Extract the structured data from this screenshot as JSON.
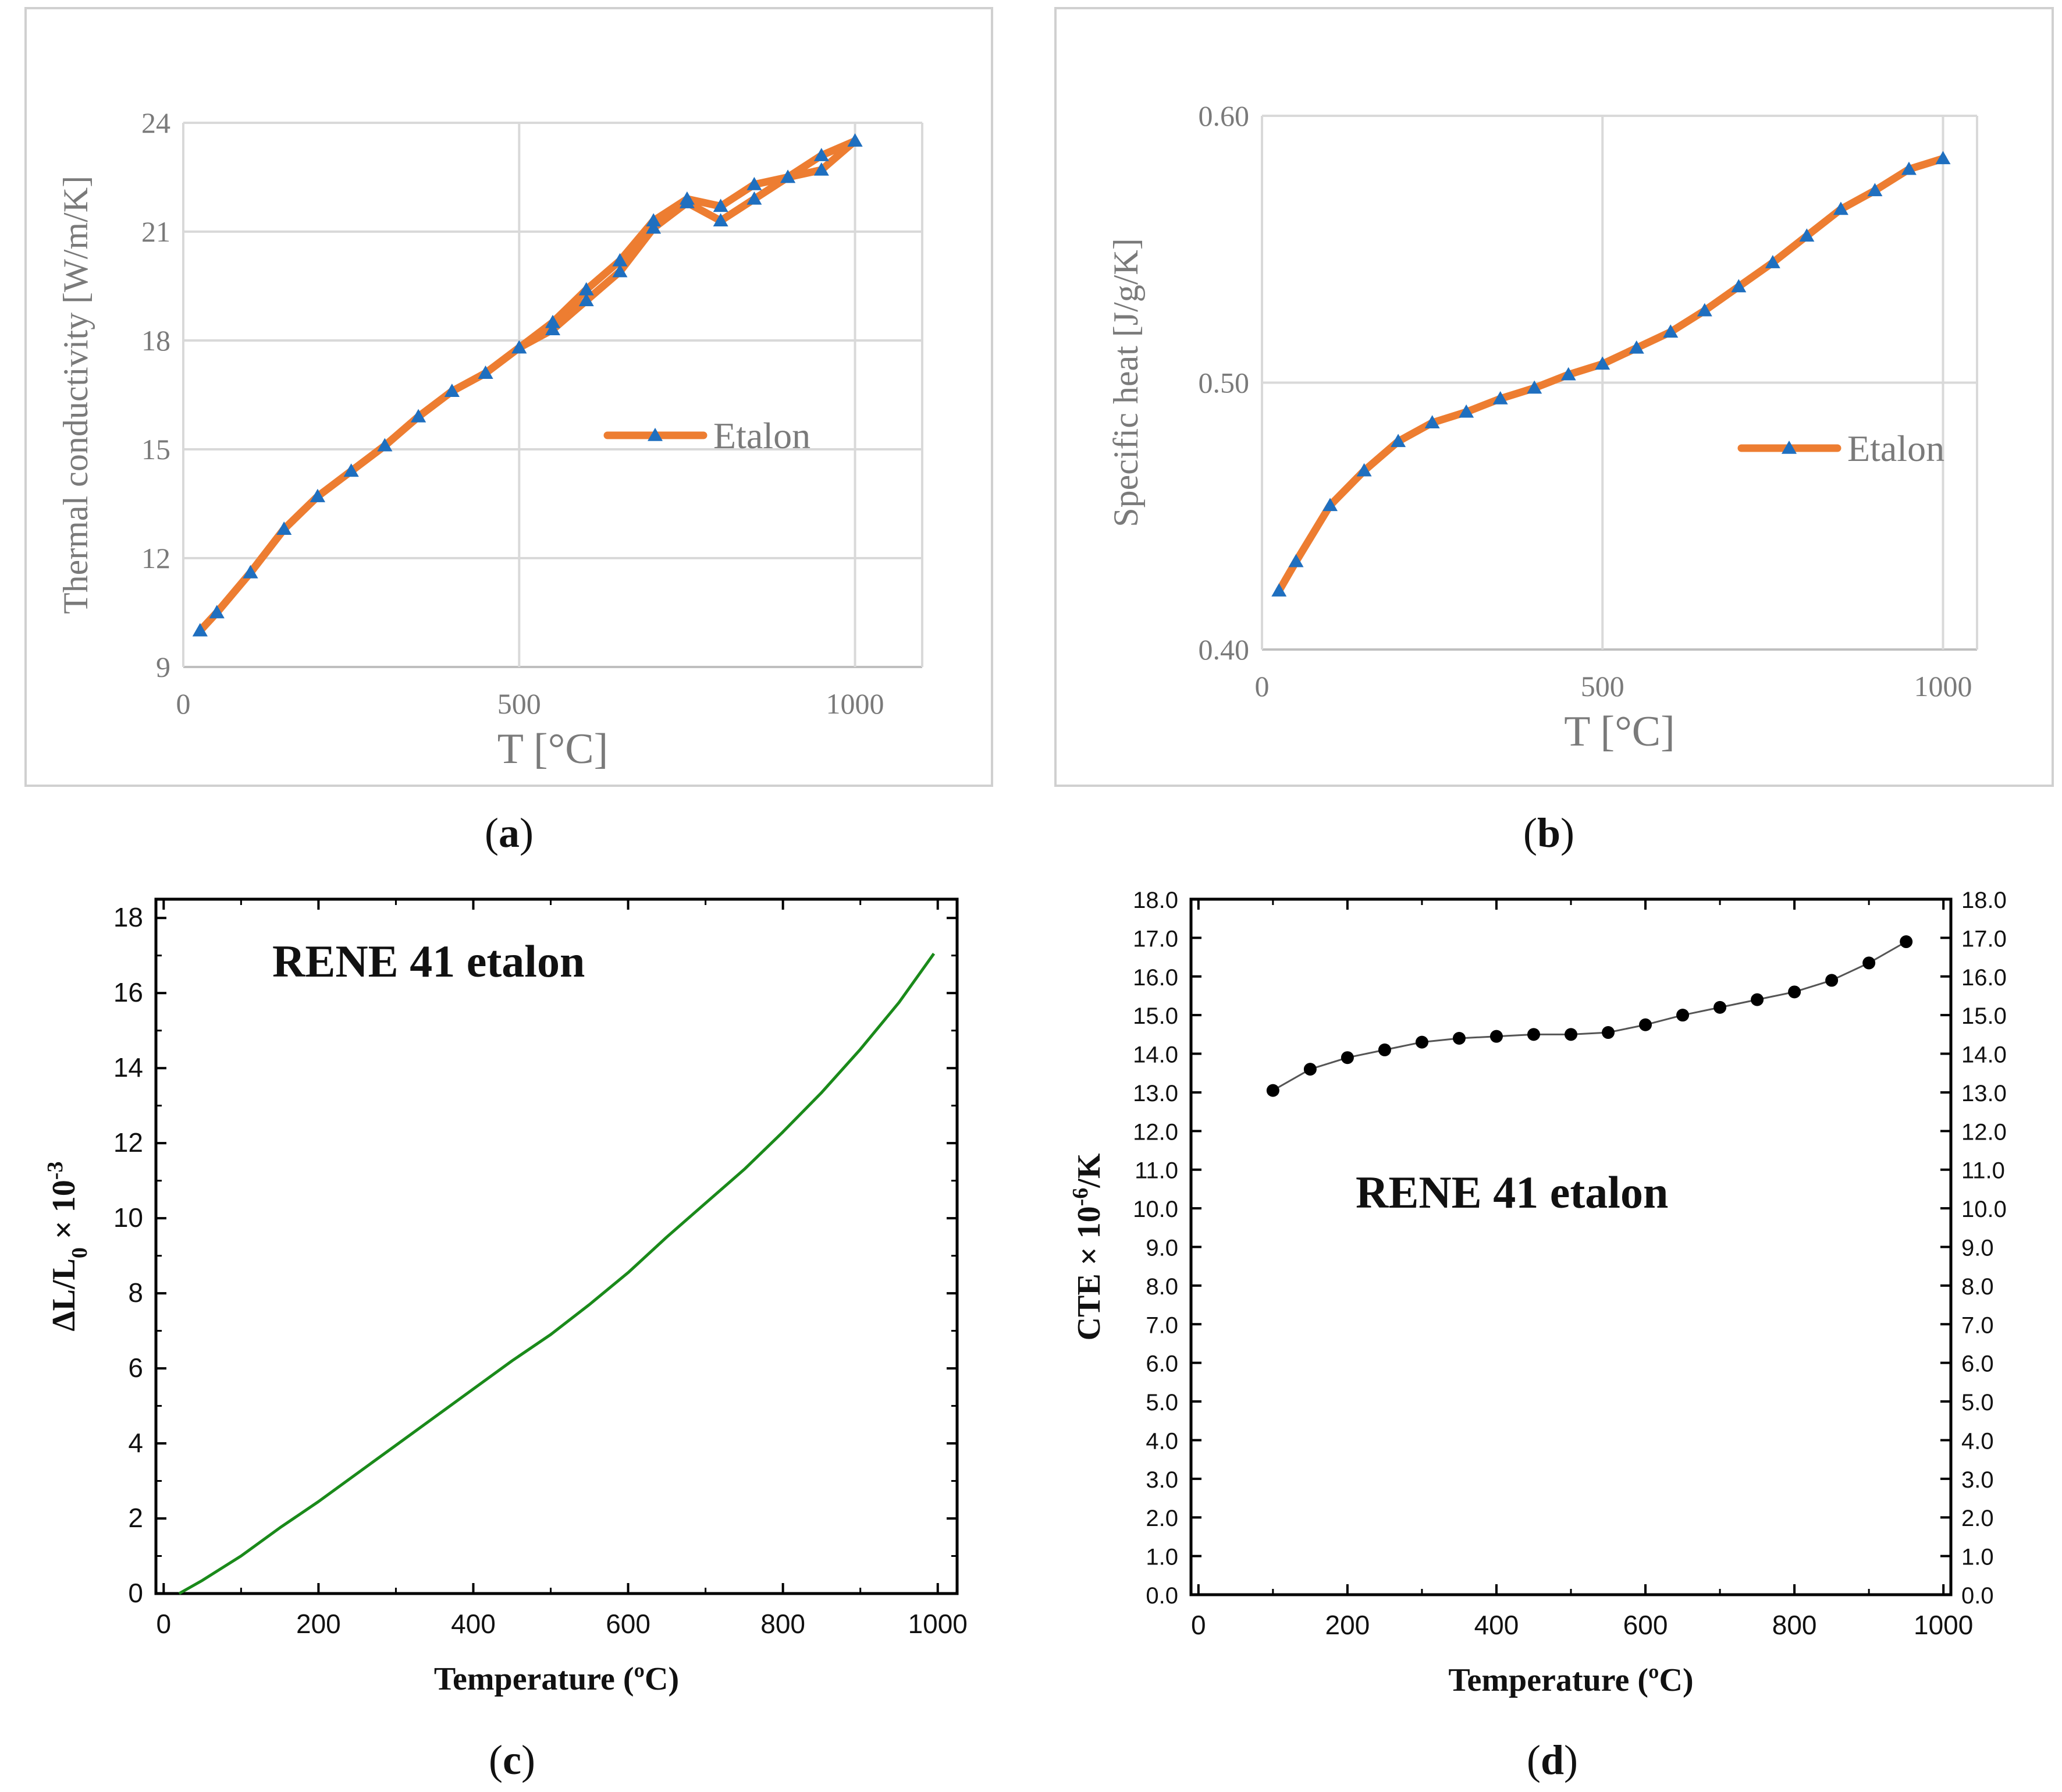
{
  "chart_data": [
    {
      "id": "a",
      "type": "line",
      "caption": [
        "(",
        "a",
        ")"
      ],
      "xlabel": "T [°C]",
      "ylabel": "Thermal conductivity [W/m/K]",
      "xlim": [
        0,
        1100
      ],
      "ylim": [
        9,
        24
      ],
      "xticks": [
        {
          "v": 0,
          "label": "0"
        },
        {
          "v": 500,
          "label": "500"
        },
        {
          "v": 1000,
          "label": "1000"
        }
      ],
      "yticks": [
        {
          "v": 9,
          "label": "9"
        },
        {
          "v": 12,
          "label": "12"
        },
        {
          "v": 15,
          "label": "15"
        },
        {
          "v": 18,
          "label": "18"
        },
        {
          "v": 21,
          "label": "21"
        },
        {
          "v": 24,
          "label": "24"
        }
      ],
      "grid": true,
      "legend": "right-middle",
      "colors": {
        "line": "#ed7d31",
        "marker": "#1f6fbf",
        "grid": "#d9d9d9",
        "axis": "#bfbfbf",
        "frame": "#d0d0d0"
      },
      "series": [
        {
          "name": "Etalon",
          "x": [
            25,
            50,
            100,
            150,
            200,
            250,
            300,
            350,
            400,
            450,
            500,
            550,
            600,
            650,
            700,
            750,
            800,
            850,
            900,
            950,
            1000
          ],
          "y": [
            10.0,
            10.5,
            11.6,
            12.8,
            13.7,
            14.4,
            15.1,
            15.9,
            16.6,
            17.1,
            17.8,
            18.3,
            19.1,
            19.9,
            21.1,
            21.8,
            21.3,
            21.9,
            22.5,
            22.7,
            23.5
          ]
        },
        {
          "name": "Etalon",
          "show_in_legend": false,
          "x": [
            25,
            50,
            100,
            150,
            200,
            250,
            300,
            350,
            400,
            450,
            500,
            550,
            600,
            650,
            700,
            750,
            800,
            850,
            900,
            950,
            1000
          ],
          "y": [
            10.0,
            10.5,
            11.6,
            12.8,
            13.7,
            14.4,
            15.1,
            15.9,
            16.6,
            17.1,
            17.8,
            18.5,
            19.4,
            20.2,
            21.3,
            21.9,
            21.7,
            22.3,
            22.5,
            23.1,
            23.5
          ]
        }
      ],
      "legend_entries": [
        "Etalon"
      ]
    },
    {
      "id": "b",
      "type": "line",
      "caption": [
        "(",
        "b",
        ")"
      ],
      "xlabel": "T [°C]",
      "ylabel": "Specific heat [J/g/K]",
      "xlim": [
        0,
        1050
      ],
      "ylim": [
        0.4,
        0.6
      ],
      "xticks": [
        {
          "v": 0,
          "label": "0"
        },
        {
          "v": 500,
          "label": "500"
        },
        {
          "v": 1000,
          "label": "1000"
        }
      ],
      "yticks": [
        {
          "v": 0.4,
          "label": "0.40"
        },
        {
          "v": 0.5,
          "label": "0.50"
        },
        {
          "v": 0.6,
          "label": "0.60"
        }
      ],
      "grid": true,
      "legend": "right-middle",
      "colors": {
        "line": "#ed7d31",
        "marker": "#1f6fbf",
        "grid": "#d9d9d9",
        "axis": "#bfbfbf",
        "frame": "#d0d0d0"
      },
      "series": [
        {
          "name": "Etalon",
          "x": [
            25,
            50,
            100,
            150,
            200,
            250,
            300,
            350,
            400,
            450,
            500,
            550,
            600,
            650,
            700,
            750,
            800,
            850,
            900,
            950,
            1000
          ],
          "y": [
            0.422,
            0.433,
            0.454,
            0.467,
            0.478,
            0.485,
            0.489,
            0.494,
            0.498,
            0.503,
            0.507,
            0.513,
            0.519,
            0.527,
            0.536,
            0.545,
            0.555,
            0.565,
            0.572,
            0.58,
            0.584
          ]
        }
      ],
      "legend_entries": [
        "Etalon"
      ]
    },
    {
      "id": "c",
      "type": "line",
      "caption": [
        "(",
        "c",
        ")"
      ],
      "xlabel": "Temperature (ºC)",
      "ylabel": {
        "a": "ΔL/L",
        "sub": "0",
        "b": " × 10",
        "sup": "-3"
      },
      "annotation": "RENE 41 etalon",
      "xlim": [
        -10,
        1025
      ],
      "ylim": [
        0,
        18.5
      ],
      "xticks": [
        {
          "v": 0,
          "label": "0"
        },
        {
          "v": 200,
          "label": "200"
        },
        {
          "v": 400,
          "label": "400"
        },
        {
          "v": 600,
          "label": "600"
        },
        {
          "v": 800,
          "label": "800"
        },
        {
          "v": 1000,
          "label": "1000"
        }
      ],
      "yticks": [
        {
          "v": 0,
          "label": "0"
        },
        {
          "v": 2,
          "label": "2"
        },
        {
          "v": 4,
          "label": "4"
        },
        {
          "v": 6,
          "label": "6"
        },
        {
          "v": 8,
          "label": "8"
        },
        {
          "v": 10,
          "label": "10"
        },
        {
          "v": 12,
          "label": "12"
        },
        {
          "v": 14,
          "label": "14"
        },
        {
          "v": 16,
          "label": "16"
        },
        {
          "v": 18,
          "label": "18"
        }
      ],
      "grid": false,
      "colors": {
        "line": "#1a8a1a",
        "axis": "#000000"
      },
      "series": [
        {
          "name": "RENE 41 etalon",
          "x": [
            20,
            50,
            100,
            150,
            200,
            250,
            300,
            350,
            400,
            450,
            500,
            550,
            600,
            650,
            700,
            750,
            800,
            850,
            900,
            950,
            995
          ],
          "y": [
            0.0,
            0.35,
            1.0,
            1.75,
            2.45,
            3.2,
            3.95,
            4.7,
            5.45,
            6.2,
            6.9,
            7.7,
            8.55,
            9.5,
            10.4,
            11.3,
            12.3,
            13.35,
            14.5,
            15.75,
            17.05
          ]
        }
      ]
    },
    {
      "id": "d",
      "type": "scatter",
      "caption": [
        "(",
        "d",
        ")"
      ],
      "xlabel": "Temperature (ºC)",
      "ylabel": {
        "a": "CTE × 10",
        "sup": "-6",
        "b": "/K"
      },
      "annotation": "RENE 41 etalon",
      "xlim": [
        -10,
        1010
      ],
      "ylim": [
        0,
        18
      ],
      "xticks": [
        {
          "v": 0,
          "label": "0"
        },
        {
          "v": 200,
          "label": "200"
        },
        {
          "v": 400,
          "label": "400"
        },
        {
          "v": 600,
          "label": "600"
        },
        {
          "v": 800,
          "label": "800"
        },
        {
          "v": 1000,
          "label": "1000"
        }
      ],
      "yticks": [
        {
          "v": 0,
          "label": "0.0"
        },
        {
          "v": 1,
          "label": "1.0"
        },
        {
          "v": 2,
          "label": "2.0"
        },
        {
          "v": 3,
          "label": "3.0"
        },
        {
          "v": 4,
          "label": "4.0"
        },
        {
          "v": 5,
          "label": "5.0"
        },
        {
          "v": 6,
          "label": "6.0"
        },
        {
          "v": 7,
          "label": "7.0"
        },
        {
          "v": 8,
          "label": "8.0"
        },
        {
          "v": 9,
          "label": "9.0"
        },
        {
          "v": 10,
          "label": "10.0"
        },
        {
          "v": 11,
          "label": "11.0"
        },
        {
          "v": 12,
          "label": "12.0"
        },
        {
          "v": 13,
          "label": "13.0"
        },
        {
          "v": 14,
          "label": "14.0"
        },
        {
          "v": 15,
          "label": "15.0"
        },
        {
          "v": 16,
          "label": "16.0"
        },
        {
          "v": 17,
          "label": "17.0"
        },
        {
          "v": 18,
          "label": "18.0"
        }
      ],
      "right_axis_mirrors_left": true,
      "grid": false,
      "colors": {
        "line": "#555555",
        "marker": "#000000",
        "axis": "#000000"
      },
      "series": [
        {
          "name": "RENE 41 etalon",
          "x": [
            100,
            150,
            200,
            250,
            300,
            350,
            400,
            450,
            500,
            550,
            600,
            650,
            700,
            750,
            800,
            850,
            900,
            950
          ],
          "y": [
            13.05,
            13.6,
            13.9,
            14.1,
            14.3,
            14.4,
            14.45,
            14.5,
            14.5,
            14.55,
            14.75,
            15.0,
            15.2,
            15.4,
            15.6,
            15.9,
            16.35,
            16.9
          ]
        }
      ]
    }
  ]
}
